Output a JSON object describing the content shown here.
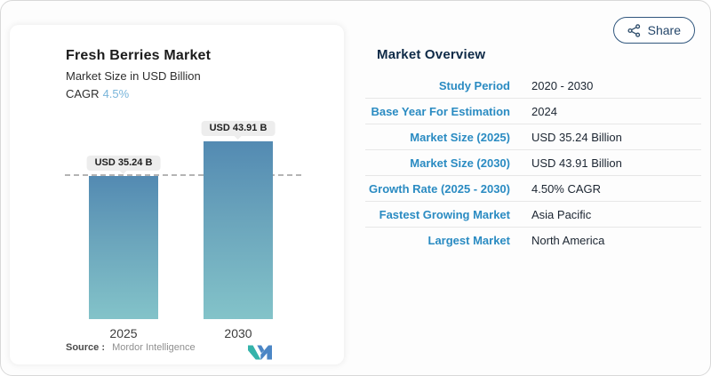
{
  "chart_card": {
    "title": "Fresh Berries Market",
    "subtitle": "Market Size in USD Billion",
    "cagr_label": "CAGR",
    "cagr_value": "4.5%",
    "source_label": "Source :",
    "source_value": "Mordor Intelligence",
    "logo": "mordor-intelligence-logo"
  },
  "chart_data": {
    "type": "bar",
    "title": "Fresh Berries Market",
    "subtitle": "Market Size in USD Billion",
    "unit": "USD Billion",
    "categories": [
      "2025",
      "2030"
    ],
    "values": [
      35.24,
      43.91
    ],
    "bar_labels": [
      "USD 35.24 B",
      "USD 43.91 B"
    ],
    "ylim": [
      0,
      43.91
    ],
    "grid": false,
    "reference_line": {
      "style": "dashed",
      "at_value": 35.24
    },
    "bar_gradient": {
      "top": "#538ab2",
      "bottom": "#83c3c9"
    }
  },
  "share_button": {
    "label": "Share",
    "icon": "share-nodes-icon"
  },
  "overview": {
    "title": "Market Overview",
    "rows": [
      {
        "label": "Study Period",
        "value": "2020 - 2030"
      },
      {
        "label": "Base Year For Estimation",
        "value": "2024"
      },
      {
        "label": "Market Size (2025)",
        "value": "USD 35.24 Billion"
      },
      {
        "label": "Market Size (2030)",
        "value": "USD 43.91 Billion"
      },
      {
        "label": "Growth Rate (2025 - 2030)",
        "value": "4.50% CAGR"
      },
      {
        "label": "Fastest Growing Market",
        "value": "Asia Pacific"
      },
      {
        "label": "Largest Market",
        "value": "North America"
      }
    ]
  },
  "colors": {
    "label_blue": "#2a8bc2",
    "cagr_blue": "#79b5da",
    "heading_navy": "#0e2a47",
    "share_outline": "#30567d",
    "tooltip_bg": "#ededed",
    "logo_teal": "#35b3aa",
    "logo_blue": "#4b86c5"
  }
}
